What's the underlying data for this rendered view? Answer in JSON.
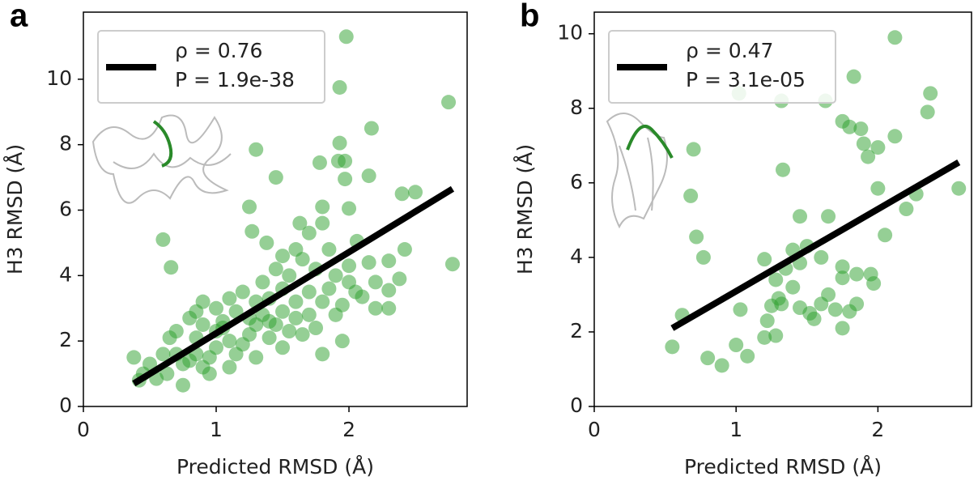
{
  "chart_data": [
    {
      "type": "scatter",
      "panel_label": "a",
      "xlabel": "Predicted RMSD (Å)",
      "ylabel": "H3 RMSD (Å)",
      "xlim": [
        0,
        2.89
      ],
      "ylim": [
        0,
        12.05
      ],
      "xticks": [
        0,
        1,
        2
      ],
      "yticks": [
        0,
        2,
        4,
        6,
        8,
        10
      ],
      "legend": [
        "ρ = 0.76",
        "P = 1.9e-38"
      ],
      "legend_loc": "upper left",
      "series": [
        {
          "color": "#2ca02c",
          "x": [
            1.98,
            1.93,
            2.75,
            2.17,
            1.93,
            1.3,
            1.97,
            1.78,
            1.92,
            2.15,
            1.97,
            1.45,
            2.4,
            2.5,
            1.25,
            1.8,
            1.63,
            1.8,
            2.0,
            0.6,
            0.66,
            1.27,
            1.38,
            1.7,
            1.85,
            2.06,
            2.15,
            2.78,
            2.42,
            2.3,
            1.6,
            1.5,
            1.55,
            2.0,
            2.2,
            2.3,
            2.38,
            2.1,
            2.2,
            1.95,
            1.8,
            1.7,
            1.5,
            1.4,
            1.3,
            1.2,
            1.1,
            1.0,
            0.9,
            0.85,
            0.8,
            0.7,
            0.65,
            0.6,
            0.5,
            0.45,
            0.38,
            0.42,
            0.55,
            0.63,
            0.75,
            0.75,
            0.8,
            0.85,
            0.9,
            0.95,
            0.95,
            1.0,
            1.0,
            1.05,
            1.1,
            1.15,
            1.2,
            1.25,
            1.3,
            1.35,
            1.4,
            1.45,
            1.5,
            1.55,
            1.6,
            1.65,
            1.7,
            1.75,
            1.8,
            1.9,
            1.95,
            2.0,
            1.85,
            1.6,
            1.4,
            1.25,
            1.15,
            1.05,
            0.9,
            0.85,
            0.7,
            1.1,
            1.3,
            1.5,
            1.75,
            1.65,
            1.45,
            1.35,
            1.9,
            2.05,
            2.3
          ],
          "y": [
            11.3,
            9.75,
            9.3,
            8.5,
            8.05,
            7.85,
            7.5,
            7.45,
            7.5,
            7.05,
            6.95,
            7.0,
            6.5,
            6.55,
            6.1,
            6.1,
            5.6,
            5.6,
            6.05,
            5.1,
            4.25,
            5.35,
            5.0,
            5.3,
            4.8,
            5.05,
            4.4,
            4.35,
            4.8,
            4.45,
            4.8,
            4.6,
            4.0,
            4.3,
            3.8,
            3.55,
            3.9,
            3.35,
            3.0,
            3.1,
            3.2,
            3.5,
            3.6,
            3.3,
            3.2,
            3.5,
            3.3,
            3.0,
            3.2,
            2.9,
            2.7,
            2.3,
            2.1,
            1.6,
            1.3,
            1.0,
            1.5,
            0.8,
            0.85,
            1.0,
            1.3,
            0.65,
            1.4,
            1.6,
            1.2,
            1.0,
            1.5,
            1.8,
            2.3,
            2.6,
            2.0,
            1.6,
            1.9,
            2.2,
            2.5,
            2.8,
            2.1,
            2.5,
            2.9,
            2.3,
            2.7,
            2.2,
            2.8,
            2.4,
            1.6,
            2.8,
            2.0,
            3.8,
            3.6,
            3.2,
            2.6,
            2.7,
            2.9,
            2.4,
            2.5,
            2.1,
            1.6,
            1.2,
            1.5,
            1.8,
            4.2,
            4.5,
            4.2,
            3.8,
            4.0,
            3.5,
            3.0
          ]
        }
      ],
      "fit": {
        "color": "#000000",
        "x": [
          0.38,
          2.78
        ],
        "y": [
          0.7,
          6.65
        ]
      }
    },
    {
      "type": "scatter",
      "panel_label": "b",
      "xlabel": "Predicted RMSD (Å)",
      "ylabel": "H3 RMSD (Å)",
      "xlim": [
        0,
        2.66
      ],
      "ylim": [
        0,
        10.58
      ],
      "xticks": [
        0,
        1,
        2
      ],
      "yticks": [
        0,
        2,
        4,
        6,
        8,
        10
      ],
      "legend": [
        "ρ = 0.47",
        "P = 3.1e-05"
      ],
      "legend_loc": "upper left",
      "series": [
        {
          "color": "#2ca02c",
          "x": [
            2.12,
            1.02,
            1.32,
            1.63,
            1.83,
            2.37,
            2.35,
            1.75,
            1.8,
            1.88,
            1.9,
            1.93,
            2.0,
            2.12,
            0.7,
            1.33,
            0.68,
            2.0,
            2.27,
            2.57,
            2.2,
            1.45,
            1.65,
            2.05,
            0.72,
            0.77,
            1.2,
            1.4,
            1.5,
            1.6,
            1.45,
            1.35,
            1.28,
            1.75,
            1.75,
            1.95,
            1.97,
            1.85,
            1.4,
            1.3,
            1.25,
            1.32,
            1.45,
            1.52,
            1.55,
            1.6,
            1.65,
            1.7,
            1.8,
            1.85,
            1.75,
            1.22,
            1.2,
            1.28,
            1.03,
            1.0,
            1.08,
            0.8,
            0.9,
            0.55,
            0.62
          ],
          "y": [
            9.9,
            8.4,
            8.2,
            8.2,
            8.85,
            8.4,
            7.9,
            7.65,
            7.5,
            7.45,
            7.05,
            6.7,
            6.95,
            7.25,
            6.9,
            6.35,
            5.65,
            5.85,
            5.7,
            5.85,
            5.3,
            5.1,
            5.1,
            4.6,
            4.55,
            4.0,
            3.95,
            4.2,
            4.3,
            4.0,
            3.85,
            3.7,
            3.4,
            3.75,
            3.45,
            3.55,
            3.3,
            3.55,
            3.2,
            2.9,
            2.7,
            2.75,
            2.65,
            2.5,
            2.35,
            2.75,
            3.0,
            2.6,
            2.55,
            2.75,
            2.1,
            2.3,
            1.85,
            1.9,
            2.6,
            1.65,
            1.35,
            1.3,
            1.1,
            1.6,
            2.45
          ]
        }
      ],
      "fit": {
        "color": "#000000",
        "x": [
          0.55,
          2.57
        ],
        "y": [
          2.1,
          6.55
        ]
      }
    }
  ]
}
